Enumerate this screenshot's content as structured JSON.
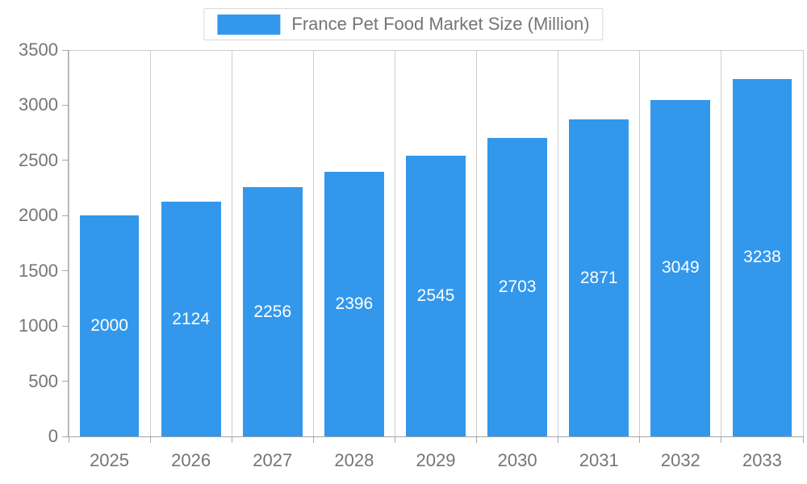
{
  "chart_data": {
    "type": "bar",
    "title": "France Pet Food Market Size (Million)",
    "categories": [
      "2025",
      "2026",
      "2027",
      "2028",
      "2029",
      "2030",
      "2031",
      "2032",
      "2033"
    ],
    "values": [
      2000,
      2124,
      2256,
      2396,
      2545,
      2703,
      2871,
      3049,
      3238
    ],
    "xlabel": "",
    "ylabel": "",
    "ylim": [
      0,
      3500
    ],
    "ytick_step": 500,
    "ytick_labels": [
      "0",
      "500",
      "1000",
      "1500",
      "2000",
      "2500",
      "3000",
      "3500"
    ],
    "grid": "vertical-only",
    "legend_position": "top-center",
    "value_labels": "inside-center-white",
    "colors": {
      "bar": "#3398EC",
      "value_label_text": "#ffffff",
      "axis_text": "#757575",
      "gridline": "#cccccc",
      "axis_line": "#a6a6a6",
      "legend_border": "#d9d9d9",
      "background": "#ffffff"
    }
  }
}
